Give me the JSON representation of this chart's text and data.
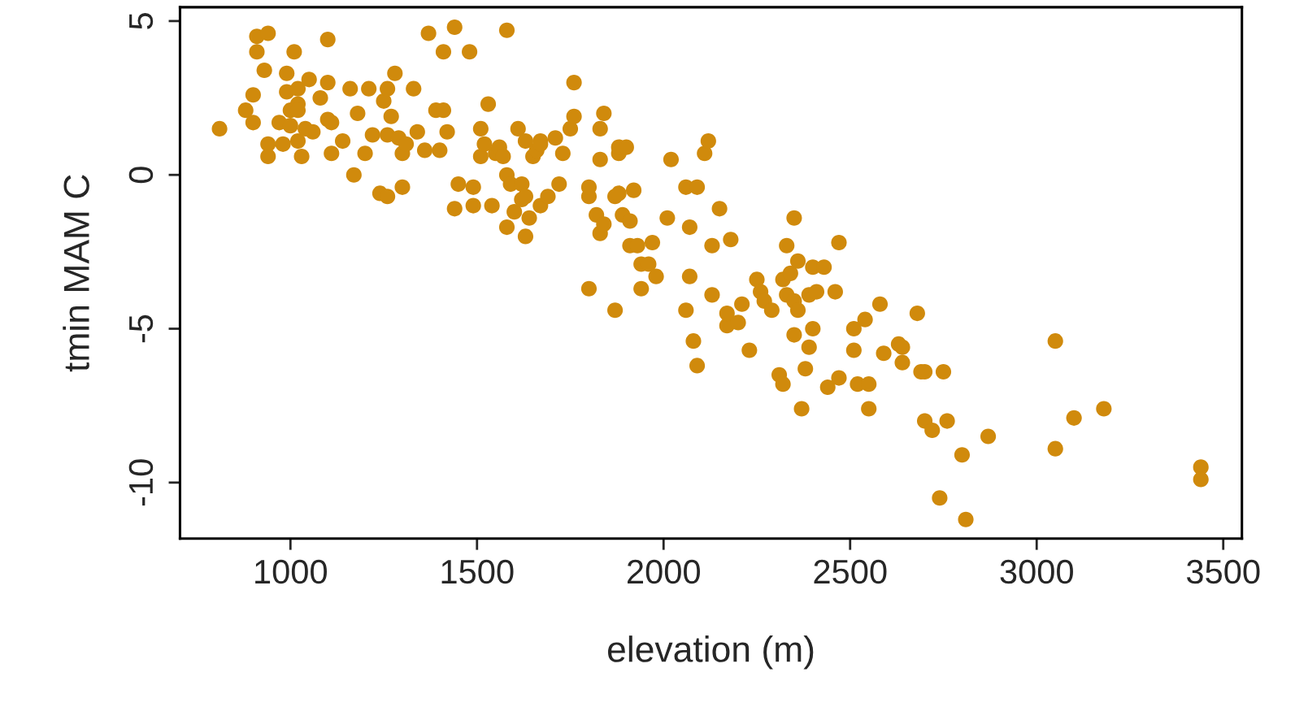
{
  "chart_data": {
    "type": "scatter",
    "xlabel": "elevation (m)",
    "ylabel": "tmin MAM C",
    "xlim": [
      704,
      3550
    ],
    "ylim": [
      -11.82,
      5.45
    ],
    "xticks": [
      1000,
      1500,
      2000,
      2500,
      3000,
      3500
    ],
    "yticks": [
      -10,
      -5,
      0,
      5
    ],
    "grid": false,
    "legend": false,
    "marker": "circle",
    "series": [
      {
        "color": "#d08a0c",
        "x": [
          810,
          880,
          900,
          900,
          910,
          910,
          940,
          930,
          940,
          940,
          970,
          980,
          990,
          990,
          1000,
          1010,
          1000,
          1020,
          1020,
          1020,
          1020,
          1030,
          1050,
          1040,
          1060,
          1080,
          1100,
          1100,
          1100,
          1110,
          1110,
          1140,
          1160,
          1170,
          1180,
          1200,
          1210,
          1220,
          1240,
          1260,
          1250,
          1260,
          1270,
          1260,
          1280,
          1290,
          1300,
          1300,
          1310,
          1330,
          1340,
          1360,
          1370,
          1390,
          1400,
          1410,
          1410,
          1420,
          1440,
          1440,
          1450,
          1480,
          1490,
          1490,
          1510,
          1510,
          1530,
          1520,
          1540,
          1550,
          1560,
          1570,
          1580,
          1580,
          1580,
          1590,
          1600,
          1610,
          1620,
          1620,
          1630,
          1630,
          1630,
          1640,
          1650,
          1660,
          1670,
          1670,
          1670,
          1690,
          1710,
          1720,
          1730,
          1750,
          1760,
          1760,
          1800,
          1800,
          1800,
          1820,
          1830,
          1830,
          1830,
          1840,
          1840,
          1870,
          1870,
          1880,
          1880,
          1880,
          1900,
          1890,
          1910,
          1910,
          1920,
          1930,
          1940,
          1940,
          1960,
          1970,
          1980,
          2010,
          2020,
          2060,
          2060,
          2070,
          2070,
          2080,
          2090,
          2090,
          2110,
          2120,
          2130,
          2130,
          2150,
          2170,
          2170,
          2180,
          2200,
          2210,
          2230,
          2250,
          2260,
          2270,
          2290,
          2310,
          2320,
          2320,
          2330,
          2330,
          2340,
          2350,
          2350,
          2350,
          2360,
          2360,
          2370,
          2380,
          2390,
          2390,
          2400,
          2400,
          2410,
          2430,
          2440,
          2460,
          2470,
          2470,
          2510,
          2510,
          2520,
          2540,
          2550,
          2550,
          2580,
          2590,
          2630,
          2640,
          2640,
          2680,
          2690,
          2700,
          2700,
          2720,
          2740,
          2750,
          2760,
          2800,
          2810,
          2870,
          3050,
          3050,
          3100,
          3180,
          3440,
          3440
        ],
        "values": [
          1.5,
          2.1,
          2.6,
          1.7,
          4.5,
          4.0,
          4.6,
          3.4,
          1.0,
          0.6,
          1.7,
          1.0,
          3.3,
          2.7,
          1.6,
          4.0,
          2.1,
          2.3,
          2.1,
          2.8,
          1.1,
          0.6,
          3.1,
          1.5,
          1.4,
          2.5,
          4.4,
          3.0,
          1.8,
          1.7,
          0.7,
          1.1,
          2.8,
          0.0,
          2.0,
          0.7,
          2.8,
          1.3,
          -0.6,
          -0.7,
          2.4,
          2.8,
          1.9,
          1.3,
          3.3,
          1.2,
          -0.4,
          0.7,
          1.0,
          2.8,
          1.4,
          0.8,
          4.6,
          2.1,
          0.8,
          4.0,
          2.1,
          1.4,
          4.8,
          -1.1,
          -0.3,
          4.0,
          -1.0,
          -0.4,
          1.5,
          0.6,
          2.3,
          1.0,
          -1.0,
          0.7,
          0.9,
          0.6,
          -1.7,
          4.7,
          0.0,
          -0.3,
          -1.2,
          1.5,
          -0.8,
          -0.3,
          1.1,
          -2.0,
          -0.7,
          -1.4,
          0.6,
          0.8,
          1.1,
          1.0,
          -1.0,
          -0.7,
          1.2,
          -0.3,
          0.7,
          1.5,
          1.9,
          3.0,
          -0.7,
          -0.4,
          -3.7,
          -1.3,
          0.5,
          -1.9,
          1.5,
          2.0,
          -1.6,
          -0.7,
          -4.4,
          -0.6,
          0.7,
          0.9,
          0.9,
          -1.3,
          -2.3,
          -1.5,
          -0.5,
          -2.3,
          -3.7,
          -2.9,
          -2.9,
          -2.2,
          -3.3,
          -1.4,
          0.5,
          -4.4,
          -0.4,
          -1.7,
          -3.3,
          -5.4,
          -0.4,
          -6.2,
          0.7,
          1.1,
          -2.3,
          -3.9,
          -1.1,
          -4.9,
          -4.5,
          -2.1,
          -4.8,
          -4.2,
          -5.7,
          -3.4,
          -3.8,
          -4.1,
          -4.4,
          -6.5,
          -3.4,
          -6.8,
          -2.3,
          -3.9,
          -3.2,
          -4.1,
          -1.4,
          -5.2,
          -2.8,
          -4.4,
          -7.6,
          -6.3,
          -5.6,
          -3.9,
          -3.0,
          -5.0,
          -3.8,
          -3.0,
          -6.9,
          -3.8,
          -6.6,
          -2.2,
          -5.0,
          -5.7,
          -6.8,
          -4.7,
          -7.6,
          -6.8,
          -4.2,
          -5.8,
          -5.5,
          -5.6,
          -6.1,
          -4.5,
          -6.4,
          -6.4,
          -8.0,
          -8.3,
          -10.5,
          -6.4,
          -8.0,
          -9.1,
          -11.2,
          -8.5,
          -8.9,
          -5.4,
          -7.9,
          -7.6,
          -9.5,
          -9.9
        ]
      }
    ]
  }
}
